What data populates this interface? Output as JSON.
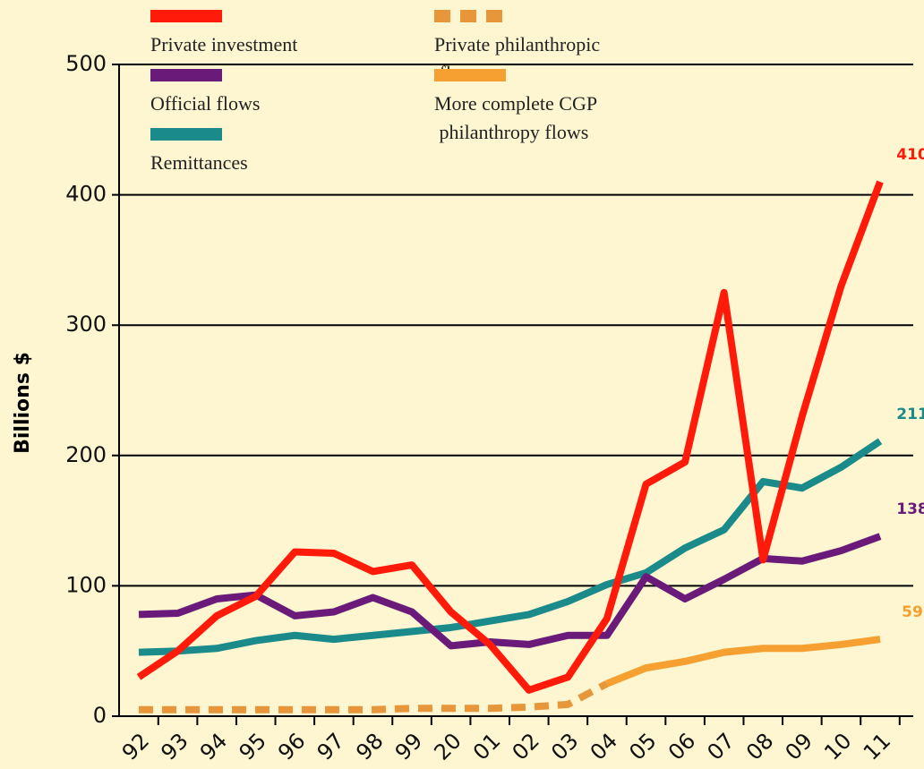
{
  "chart_data": {
    "type": "line",
    "ylabel": "Billions $",
    "categories": [
      "92",
      "93",
      "94",
      "95",
      "96",
      "97",
      "98",
      "99",
      "20",
      "01",
      "02",
      "03",
      "04",
      "05",
      "06",
      "07",
      "08",
      "09",
      "10",
      "11"
    ],
    "series": [
      {
        "name": "Private investment",
        "color": "#ff1a0a",
        "dash": false,
        "values": [
          30,
          50,
          77,
          92,
          126,
          125,
          111,
          116,
          80,
          55,
          20,
          30,
          75,
          178,
          195,
          325,
          120,
          230,
          330,
          410
        ]
      },
      {
        "name": "Official flows",
        "color": "#6a1b7a",
        "dash": false,
        "values": [
          78,
          79,
          90,
          93,
          77,
          80,
          91,
          80,
          54,
          57,
          55,
          62,
          62,
          107,
          90,
          105,
          121,
          119,
          127,
          138
        ]
      },
      {
        "name": "Remittances",
        "color": "#1a8a8a",
        "dash": false,
        "values": [
          49,
          50,
          52,
          58,
          62,
          59,
          62,
          65,
          68,
          73,
          78,
          88,
          101,
          110,
          129,
          143,
          180,
          175,
          191,
          211
        ]
      },
      {
        "name": "Private philanthropic flows",
        "color": "#e8963a",
        "dash": true,
        "values": [
          5,
          5,
          5,
          5,
          5,
          5,
          5,
          6,
          6,
          6,
          7,
          9,
          25,
          null,
          null,
          null,
          null,
          null,
          null,
          null
        ]
      },
      {
        "name": "More complete CGP philanthropy flows",
        "color": "#f5a030",
        "dash": false,
        "values": [
          null,
          null,
          null,
          null,
          null,
          null,
          null,
          null,
          null,
          null,
          null,
          null,
          25,
          37,
          42,
          49,
          52,
          52,
          55,
          59
        ]
      }
    ],
    "end_labels": [
      0,
      2,
      1,
      4
    ],
    "ylim": [
      0,
      500
    ],
    "yticks": [
      0,
      100,
      200,
      300,
      400,
      500
    ],
    "grid": true,
    "legend": "upper left"
  }
}
